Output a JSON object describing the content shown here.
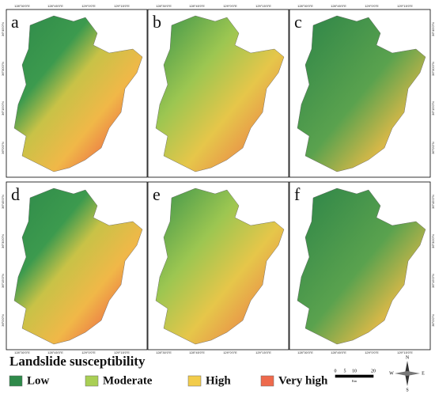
{
  "panels": [
    {
      "label": "a"
    },
    {
      "label": "b"
    },
    {
      "label": "c"
    },
    {
      "label": "d"
    },
    {
      "label": "e"
    },
    {
      "label": "f"
    }
  ],
  "longitude_labels": [
    "128°30'0\"E",
    "128°45'0\"E",
    "129°0'0\"E",
    "129°15'0\"E"
  ],
  "latitude_labels": [
    "36°45'0\"N",
    "36°30'0\"N",
    "36°15'0\"N",
    "36°0'0\"N"
  ],
  "legend": {
    "title": "Landslide susceptibility",
    "items": [
      {
        "label": "Low",
        "color": "#2f8a4a"
      },
      {
        "label": "Moderate",
        "color": "#a9cf54"
      },
      {
        "label": "High",
        "color": "#f2cc4a"
      },
      {
        "label": "Very high",
        "color": "#ee6a4c"
      }
    ]
  },
  "scale_bar": {
    "ticks": [
      "0",
      "5",
      "10",
      "20"
    ],
    "unit": "Km"
  },
  "compass": {
    "north": "N",
    "south": "S",
    "east": "E",
    "west": "W"
  }
}
